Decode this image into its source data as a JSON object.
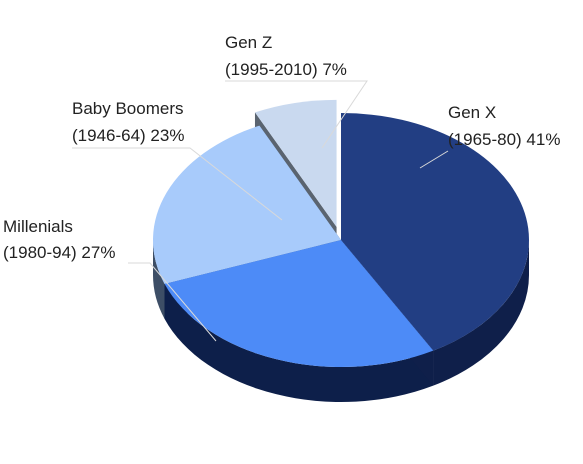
{
  "chart_data": {
    "type": "pie",
    "style": "3d-exploded",
    "title": "",
    "legend": "none",
    "slices": [
      {
        "label_line1": "Gen X",
        "label_line2": "(1965-80) 41%",
        "value": 41,
        "color": "#223e83",
        "side_color": "#0f1f4a"
      },
      {
        "label_line1": "Millenials",
        "label_line2": "(1980-94) 27%",
        "value": 27,
        "color": "#4d8bf7",
        "side_color": "#0d1f4a"
      },
      {
        "label_line1": "Baby Boomers",
        "label_line2": "(1946-64) 23%",
        "value": 23,
        "color": "#a8cbfb",
        "side_color": "#3d4e66"
      },
      {
        "label_line1": "Gen Z",
        "label_line2": "(1995-2010) 7%",
        "value": 7,
        "color": "#c9d9ef",
        "side_color": "#5a6470"
      }
    ]
  }
}
